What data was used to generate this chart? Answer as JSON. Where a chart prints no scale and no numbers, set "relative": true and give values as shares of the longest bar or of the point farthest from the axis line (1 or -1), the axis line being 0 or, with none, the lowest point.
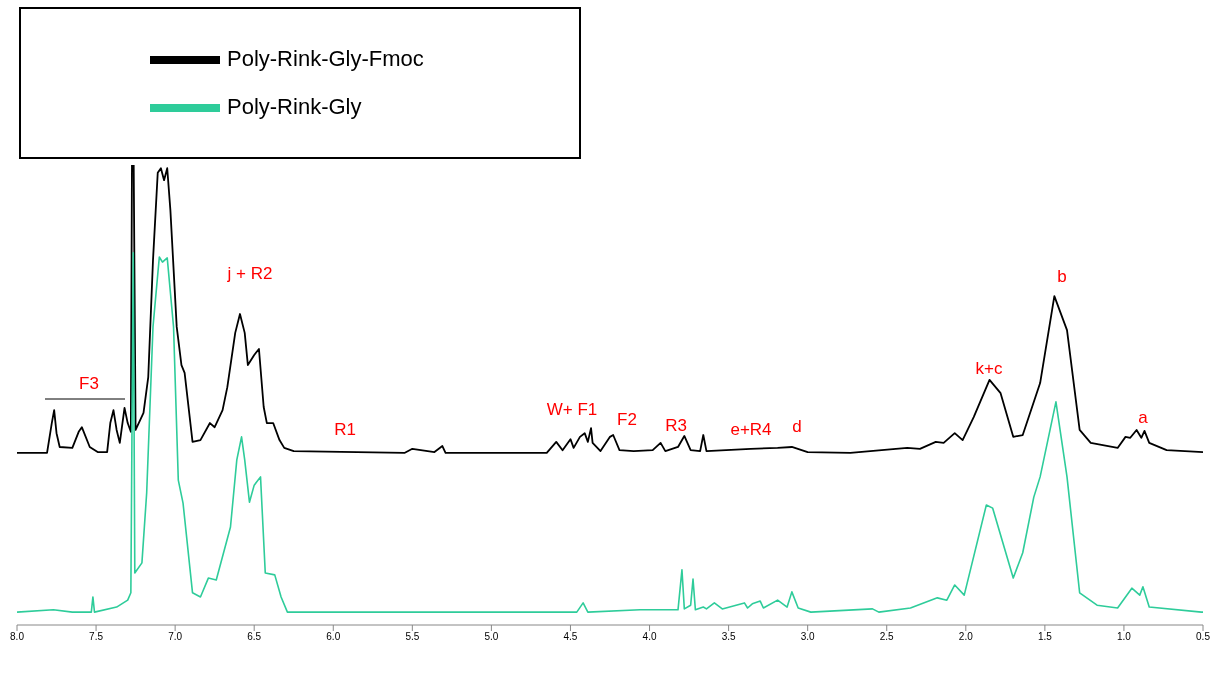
{
  "chart_data": {
    "type": "line",
    "relative": true,
    "xlim": [
      8.0,
      0.5
    ],
    "xticks": [
      {
        "value": 8,
        "label": "8.0"
      },
      7.5,
      {
        "value": 7,
        "label": "7.0"
      },
      6.5,
      {
        "value": 6,
        "label": "6.0"
      },
      5.5,
      {
        "value": 5,
        "label": "5.0"
      },
      4.5,
      {
        "value": 4,
        "label": "4.0"
      },
      3.5,
      {
        "value": 3,
        "label": "3.0"
      },
      2.5,
      {
        "value": 2,
        "label": "2.0"
      },
      1.5,
      {
        "value": 1,
        "label": "1.0"
      },
      0.5
    ],
    "grid": false,
    "legend": "top left",
    "marker": "none",
    "line_style": "solid",
    "series": [
      {
        "name": "Poly-Rink-Gly-Fmoc",
        "color": "#000000",
        "x": [
          8.0,
          7.81,
          7.78,
          7.765,
          7.75,
          7.73,
          7.65,
          7.61,
          7.59,
          7.54,
          7.49,
          7.43,
          7.41,
          7.39,
          7.37,
          7.35,
          7.32,
          7.3,
          7.28,
          7.273,
          7.262,
          7.25,
          7.2,
          7.17,
          7.14,
          7.11,
          7.09,
          7.07,
          7.05,
          7.03,
          6.99,
          6.96,
          6.94,
          6.89,
          6.84,
          6.78,
          6.75,
          6.7,
          6.67,
          6.62,
          6.59,
          6.56,
          6.54,
          6.5,
          6.47,
          6.44,
          6.42,
          6.38,
          6.34,
          6.31,
          6.25,
          5.55,
          5.5,
          5.36,
          5.31,
          5.29,
          4.65,
          4.59,
          4.55,
          4.5,
          4.48,
          4.44,
          4.41,
          4.39,
          4.37,
          4.36,
          4.31,
          4.25,
          4.23,
          4.19,
          4.1,
          3.98,
          3.93,
          3.9,
          3.82,
          3.78,
          3.74,
          3.68,
          3.66,
          3.64,
          3.36,
          3.19,
          3.1,
          3.0,
          2.73,
          2.37,
          2.29,
          2.19,
          2.14,
          2.07,
          2.02,
          1.95,
          1.85,
          1.78,
          1.7,
          1.64,
          1.53,
          1.44,
          1.36,
          1.28,
          1.21,
          1.04,
          0.99,
          0.96,
          0.92,
          0.89,
          0.87,
          0.84,
          0.73,
          0.5
        ],
        "values": [
          0.374,
          0.374,
          0.439,
          0.467,
          0.417,
          0.387,
          0.385,
          0.42,
          0.43,
          0.387,
          0.376,
          0.376,
          0.439,
          0.467,
          0.424,
          0.396,
          0.472,
          0.439,
          0.42,
          1.0,
          1.0,
          0.424,
          0.461,
          0.539,
          0.793,
          0.983,
          0.993,
          0.967,
          0.993,
          0.902,
          0.648,
          0.565,
          0.548,
          0.398,
          0.402,
          0.439,
          0.43,
          0.467,
          0.517,
          0.635,
          0.676,
          0.635,
          0.565,
          0.587,
          0.6,
          0.474,
          0.439,
          0.439,
          0.402,
          0.385,
          0.378,
          0.374,
          0.383,
          0.376,
          0.389,
          0.374,
          0.374,
          0.398,
          0.38,
          0.404,
          0.385,
          0.409,
          0.417,
          0.398,
          0.428,
          0.396,
          0.378,
          0.409,
          0.413,
          0.38,
          0.378,
          0.38,
          0.396,
          0.378,
          0.387,
          0.411,
          0.38,
          0.378,
          0.413,
          0.378,
          0.383,
          0.385,
          0.387,
          0.376,
          0.374,
          0.385,
          0.383,
          0.398,
          0.396,
          0.417,
          0.402,
          0.452,
          0.533,
          0.504,
          0.409,
          0.413,
          0.526,
          0.715,
          0.641,
          0.424,
          0.396,
          0.385,
          0.409,
          0.407,
          0.424,
          0.407,
          0.422,
          0.396,
          0.38,
          0.376
        ]
      },
      {
        "name": "Poly-Rink-Gly",
        "color": "#2ecc9a",
        "x": [
          8.0,
          7.77,
          7.65,
          7.53,
          7.52,
          7.51,
          7.37,
          7.3,
          7.28,
          7.265,
          7.255,
          7.21,
          7.18,
          7.14,
          7.1,
          7.08,
          7.05,
          7.01,
          6.98,
          6.95,
          6.89,
          6.84,
          6.79,
          6.74,
          6.65,
          6.61,
          6.58,
          6.56,
          6.53,
          6.5,
          6.46,
          6.43,
          6.37,
          6.33,
          6.29,
          4.46,
          4.42,
          4.39,
          4.06,
          3.82,
          3.795,
          3.78,
          3.74,
          3.725,
          3.71,
          3.66,
          3.64,
          3.59,
          3.54,
          3.4,
          3.38,
          3.35,
          3.3,
          3.28,
          3.19,
          3.13,
          3.1,
          3.06,
          2.98,
          2.59,
          2.55,
          2.35,
          2.18,
          2.12,
          2.07,
          2.01,
          1.87,
          1.83,
          1.7,
          1.64,
          1.57,
          1.53,
          1.43,
          1.36,
          1.28,
          1.17,
          1.04,
          0.95,
          0.9,
          0.88,
          0.84,
          0.51,
          0.5
        ],
        "values": [
          0.028,
          0.033,
          0.028,
          0.028,
          0.061,
          0.028,
          0.039,
          0.054,
          0.07,
          0.809,
          0.113,
          0.135,
          0.287,
          0.648,
          0.8,
          0.789,
          0.798,
          0.648,
          0.315,
          0.265,
          0.07,
          0.061,
          0.102,
          0.098,
          0.213,
          0.359,
          0.409,
          0.359,
          0.267,
          0.304,
          0.322,
          0.113,
          0.109,
          0.061,
          0.028,
          0.028,
          0.048,
          0.028,
          0.033,
          0.033,
          0.12,
          0.035,
          0.043,
          0.1,
          0.033,
          0.039,
          0.035,
          0.048,
          0.035,
          0.048,
          0.037,
          0.046,
          0.052,
          0.037,
          0.054,
          0.039,
          0.072,
          0.037,
          0.028,
          0.035,
          0.028,
          0.037,
          0.059,
          0.054,
          0.087,
          0.065,
          0.261,
          0.254,
          0.102,
          0.157,
          0.278,
          0.322,
          0.485,
          0.322,
          0.07,
          0.043,
          0.037,
          0.08,
          0.065,
          0.083,
          0.039,
          0.028,
          0.028
        ]
      }
    ],
    "annotations": [
      "F3",
      "j + R2",
      "R1",
      "W+ F1",
      "F2",
      "R3",
      "e+R4",
      "d",
      "k+c",
      "b",
      "a"
    ]
  }
}
